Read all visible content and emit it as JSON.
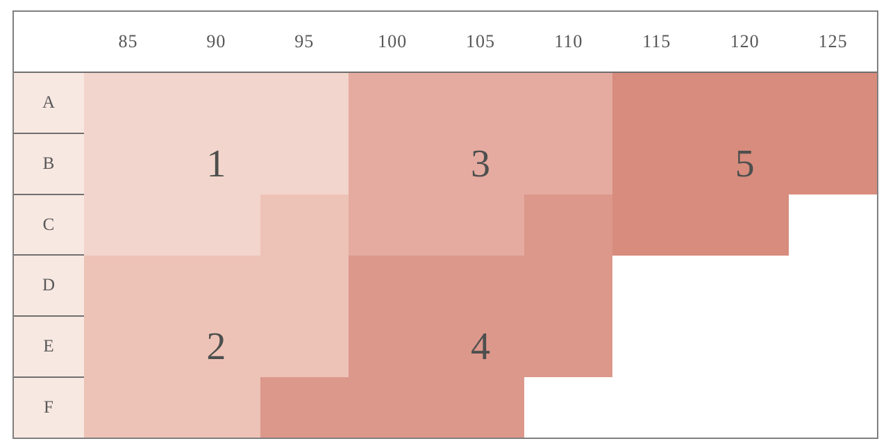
{
  "theme": {
    "page_background": "#ffffff",
    "border_color": "#7f7f7f",
    "line_color": "#6f6f6f",
    "header_text_color": "#575757",
    "row_label_background": "#f8e8e2",
    "zone_number_color": "#4d4f4e",
    "empty_cell_color": "#ffffff"
  },
  "chart_data": {
    "type": "heatmap",
    "x_labels": [
      "85",
      "90",
      "95",
      "100",
      "105",
      "110",
      "115",
      "120",
      "125"
    ],
    "y_labels": [
      "A",
      "B",
      "C",
      "D",
      "E",
      "F"
    ],
    "grid_zone_ids": [
      [
        1,
        1,
        1,
        3,
        3,
        3,
        5,
        5,
        5
      ],
      [
        1,
        1,
        1,
        3,
        3,
        3,
        5,
        5,
        5
      ],
      [
        1,
        1,
        2,
        3,
        3,
        4,
        5,
        5,
        0
      ],
      [
        2,
        2,
        2,
        4,
        4,
        4,
        0,
        0,
        0
      ],
      [
        2,
        2,
        2,
        4,
        4,
        4,
        0,
        0,
        0
      ],
      [
        2,
        2,
        4,
        4,
        4,
        0,
        0,
        0,
        0
      ]
    ],
    "zones": [
      {
        "id": 1,
        "label": "1",
        "color": "#f2d5cc",
        "label_anchor": {
          "col_index": 1,
          "vertical_half": "top"
        }
      },
      {
        "id": 2,
        "label": "2",
        "color": "#eec3b7",
        "label_anchor": {
          "col_index": 1,
          "vertical_half": "bottom"
        }
      },
      {
        "id": 3,
        "label": "3",
        "color": "#e5aba0",
        "label_anchor": {
          "col_index": 4,
          "vertical_half": "top"
        }
      },
      {
        "id": 4,
        "label": "4",
        "color": "#dc988b",
        "label_anchor": {
          "col_index": 4,
          "vertical_half": "bottom"
        }
      },
      {
        "id": 5,
        "label": "5",
        "color": "#d78c7d",
        "label_anchor": {
          "col_index": 7,
          "vertical_half": "top"
        }
      }
    ],
    "empty_color": "#ffffff",
    "legend_position": "none",
    "grid_lines": "row-header-only"
  }
}
